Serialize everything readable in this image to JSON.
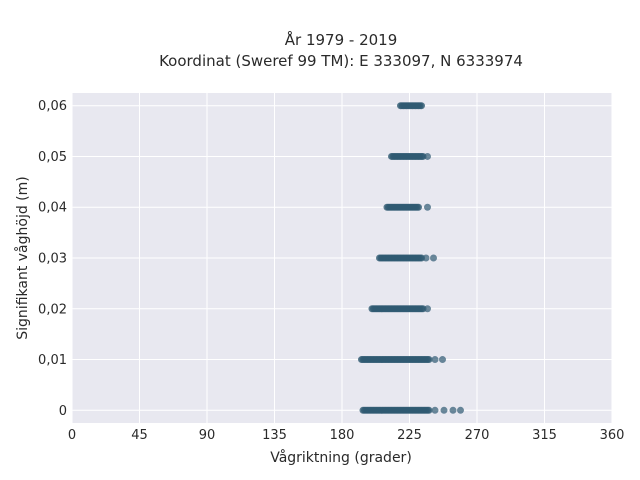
{
  "chart_data": {
    "type": "scatter",
    "title_lines": [
      "År 1979 - 2019",
      "Koordinat (Sweref 99 TM): E 333097, N 6333974"
    ],
    "xlabel": "Vågriktning (grader)",
    "ylabel": "Signifikant våghöjd (m)",
    "xlim": [
      0,
      360
    ],
    "ylim": [
      -0.0025,
      0.0625
    ],
    "xticks": [
      0,
      45,
      90,
      135,
      180,
      225,
      270,
      315,
      360
    ],
    "xtick_labels": [
      "0",
      "45",
      "90",
      "135",
      "180",
      "225",
      "270",
      "315",
      "360"
    ],
    "yticks": [
      0,
      0.01,
      0.02,
      0.03,
      0.04,
      0.05,
      0.06
    ],
    "ytick_labels": [
      "0",
      "0,01",
      "0,02",
      "0,03",
      "0,04",
      "0,05",
      "0,06"
    ],
    "grid": true,
    "plot_background": "#e8e8f0",
    "marker_color": "#2f5a72",
    "point_bands": [
      {
        "y": 0.0,
        "x_from": 194,
        "x_to": 238,
        "outliers_x": [
          242,
          248,
          254,
          259
        ]
      },
      {
        "y": 0.01,
        "x_from": 193,
        "x_to": 238,
        "outliers_x": [
          242,
          247
        ]
      },
      {
        "y": 0.02,
        "x_from": 200,
        "x_to": 234,
        "outliers_x": [
          237
        ]
      },
      {
        "y": 0.03,
        "x_from": 205,
        "x_to": 233,
        "outliers_x": [
          236,
          241
        ]
      },
      {
        "y": 0.04,
        "x_from": 210,
        "x_to": 231,
        "outliers_x": [
          237
        ]
      },
      {
        "y": 0.05,
        "x_from": 213,
        "x_to": 234,
        "outliers_x": [
          237
        ]
      },
      {
        "y": 0.06,
        "x_from": 219,
        "x_to": 233,
        "outliers_x": []
      }
    ]
  }
}
